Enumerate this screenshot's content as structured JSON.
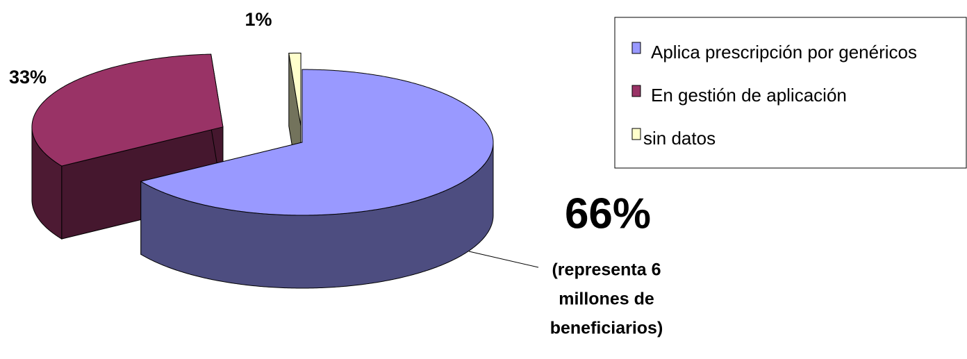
{
  "chart_data": {
    "type": "pie3d",
    "categories": [
      "Aplica prescripción por genéricos",
      "En gestión de aplicación",
      "sin datos"
    ],
    "values": [
      66,
      33,
      1
    ],
    "value_labels": [
      "66%",
      "33%",
      "1%"
    ],
    "colors": [
      "#9999ff",
      "#993366",
      "#ffffcc"
    ],
    "annotation": [
      "(representa 6",
      "millones de",
      "beneficiarios)"
    ],
    "legend": "upper right"
  }
}
